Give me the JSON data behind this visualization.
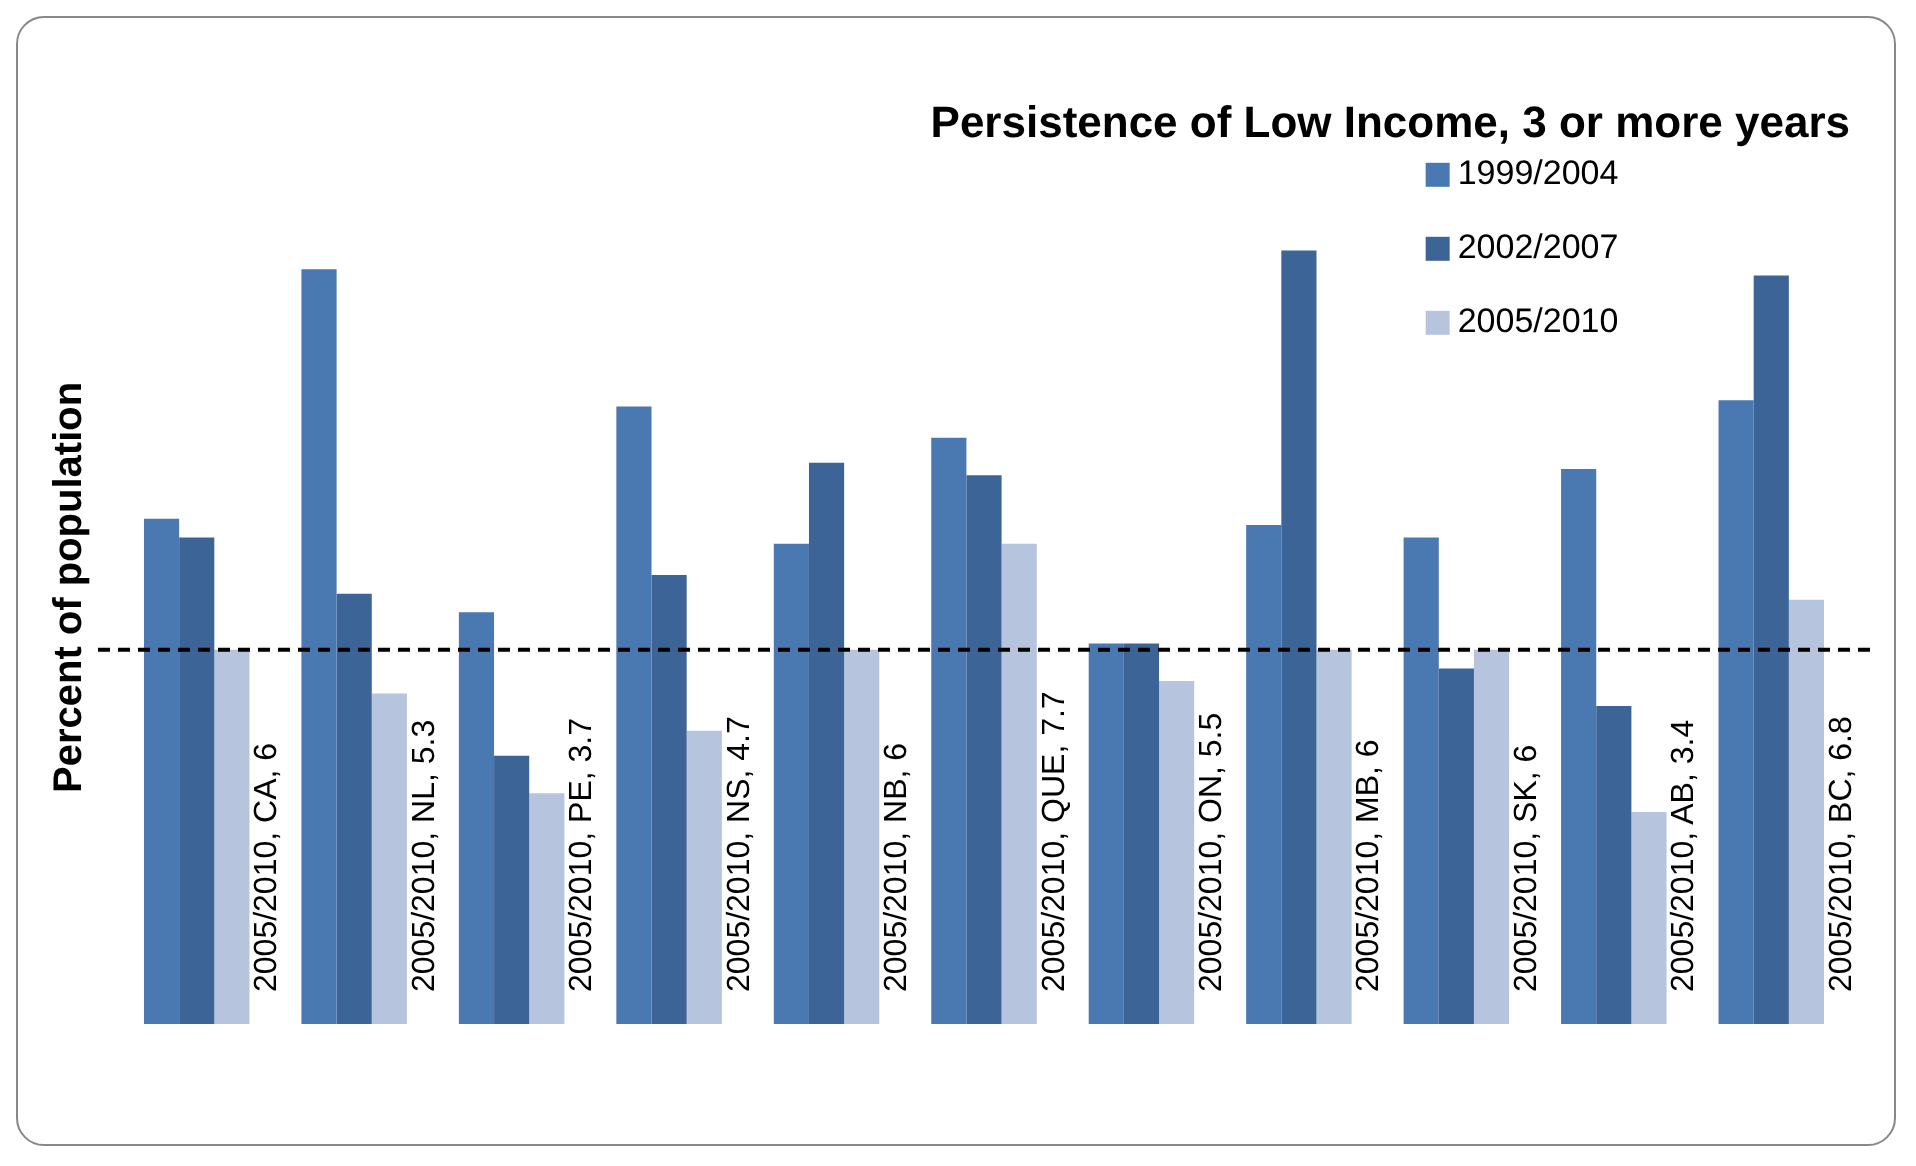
{
  "chart_data": {
    "type": "bar",
    "title": "Persistence of Low Income, 3 or more years",
    "ylabel": "Percent of population",
    "categories": [
      null,
      null,
      null,
      null,
      null,
      null,
      null,
      null,
      null,
      null,
      null
    ],
    "series": [
      {
        "name": "1999/2004",
        "color": "#4a78b0",
        "values": [
          8.1,
          12.1,
          6.6,
          9.9,
          7.7,
          9.4,
          6.1,
          8.0,
          7.8,
          8.9,
          10.0
        ]
      },
      {
        "name": "2002/2007",
        "color": "#3c6497",
        "values": [
          7.8,
          6.9,
          4.3,
          7.2,
          9.0,
          8.8,
          6.1,
          12.4,
          5.7,
          5.1,
          12.0
        ]
      },
      {
        "name": "2005/2010",
        "color": "#b6c4de",
        "values": [
          6,
          5.3,
          3.7,
          4.7,
          6,
          7.7,
          5.5,
          6,
          6,
          3.4,
          6.8
        ],
        "value_labels": [
          "2005/2010, CA, 6",
          "2005/2010, NL, 5.3",
          "2005/2010, PE, 3.7",
          "2005/2010, NS, 4.7",
          "2005/2010, NB, 6",
          "2005/2010, QUE, 7.7",
          "2005/2010, ON, 5.5",
          "2005/2010, MB, 6",
          "2005/2010, SK, 6",
          "2005/2010, AB, 3.4",
          "2005/2010, BC, 6.8"
        ]
      }
    ],
    "ref_lines": [
      {
        "axis": "y",
        "value": 6,
        "line_style": "dashed",
        "color": "#000000"
      }
    ],
    "legend": "top right",
    "grid": false
  }
}
